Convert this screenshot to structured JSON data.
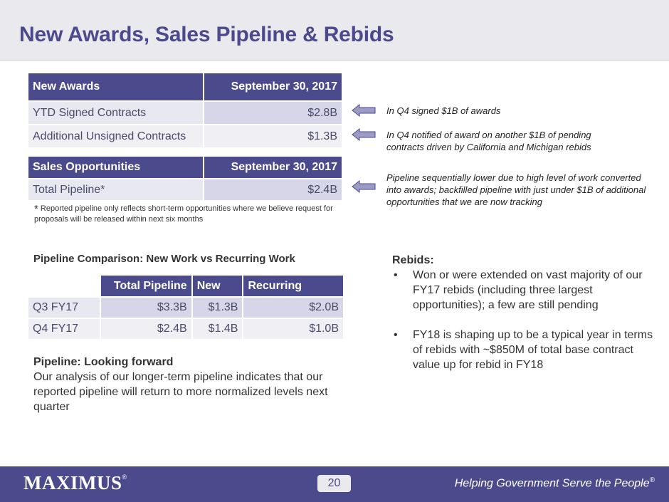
{
  "title": "New Awards, Sales Pipeline & Rebids",
  "awards_table": {
    "header": [
      "New Awards",
      "September 30, 2017"
    ],
    "rows": [
      {
        "label": "YTD Signed Contracts",
        "value": "$2.8B"
      },
      {
        "label": "Additional Unsigned Contracts",
        "value": "$1.3B"
      }
    ]
  },
  "sales_table": {
    "header": [
      "Sales Opportunities",
      "September 30, 2017"
    ],
    "rows": [
      {
        "label": "Total Pipeline*",
        "value": "$2.4B"
      }
    ]
  },
  "footnote": {
    "star": "*",
    "text": "Reported pipeline only reflects short-term opportunities where we believe request for proposals will be released within next six months"
  },
  "notes": [
    "In Q4 signed $1B of awards",
    "In Q4 notified of award on another $1B of pending contracts driven by California and Michigan rebids",
    "Pipeline sequentially lower due to high level of work converted into awards; backfilled pipeline with just under $1B of additional opportunities that we are now tracking"
  ],
  "pipeline_comparison": {
    "title": "Pipeline Comparison: New Work vs Recurring Work",
    "columns": [
      "Total Pipeline",
      "New",
      "Recurring"
    ],
    "rows": [
      {
        "label": "Q3 FY17",
        "values": [
          "$3.3B",
          "$1.3B",
          "$2.0B"
        ]
      },
      {
        "label": "Q4 FY17",
        "values": [
          "$2.4B",
          "$1.4B",
          "$1.0B"
        ]
      }
    ]
  },
  "looking_forward": {
    "heading": "Pipeline: Looking forward",
    "text": "Our analysis of our longer-term pipeline indicates that our reported pipeline will return to more normalized levels next quarter"
  },
  "rebids": {
    "heading": "Rebids:",
    "bullet": "•",
    "items": [
      "Won or were extended on vast majority of our FY17 rebids (including three largest opportunities); a few are still pending",
      "FY18 is shaping up to be a typical year in terms of rebids with ~$850M of total base contract value up for rebid in FY18"
    ]
  },
  "footer": {
    "logo": "MAXIMUS",
    "logo_mark": "®",
    "page_number": "20",
    "tagline": "Helping Government Serve the People",
    "tagline_mark": "®"
  },
  "colors": {
    "brand_purple": "#4b4a8c",
    "title_bar": "#e9e9ee",
    "row_value": "#d6d6e8"
  }
}
